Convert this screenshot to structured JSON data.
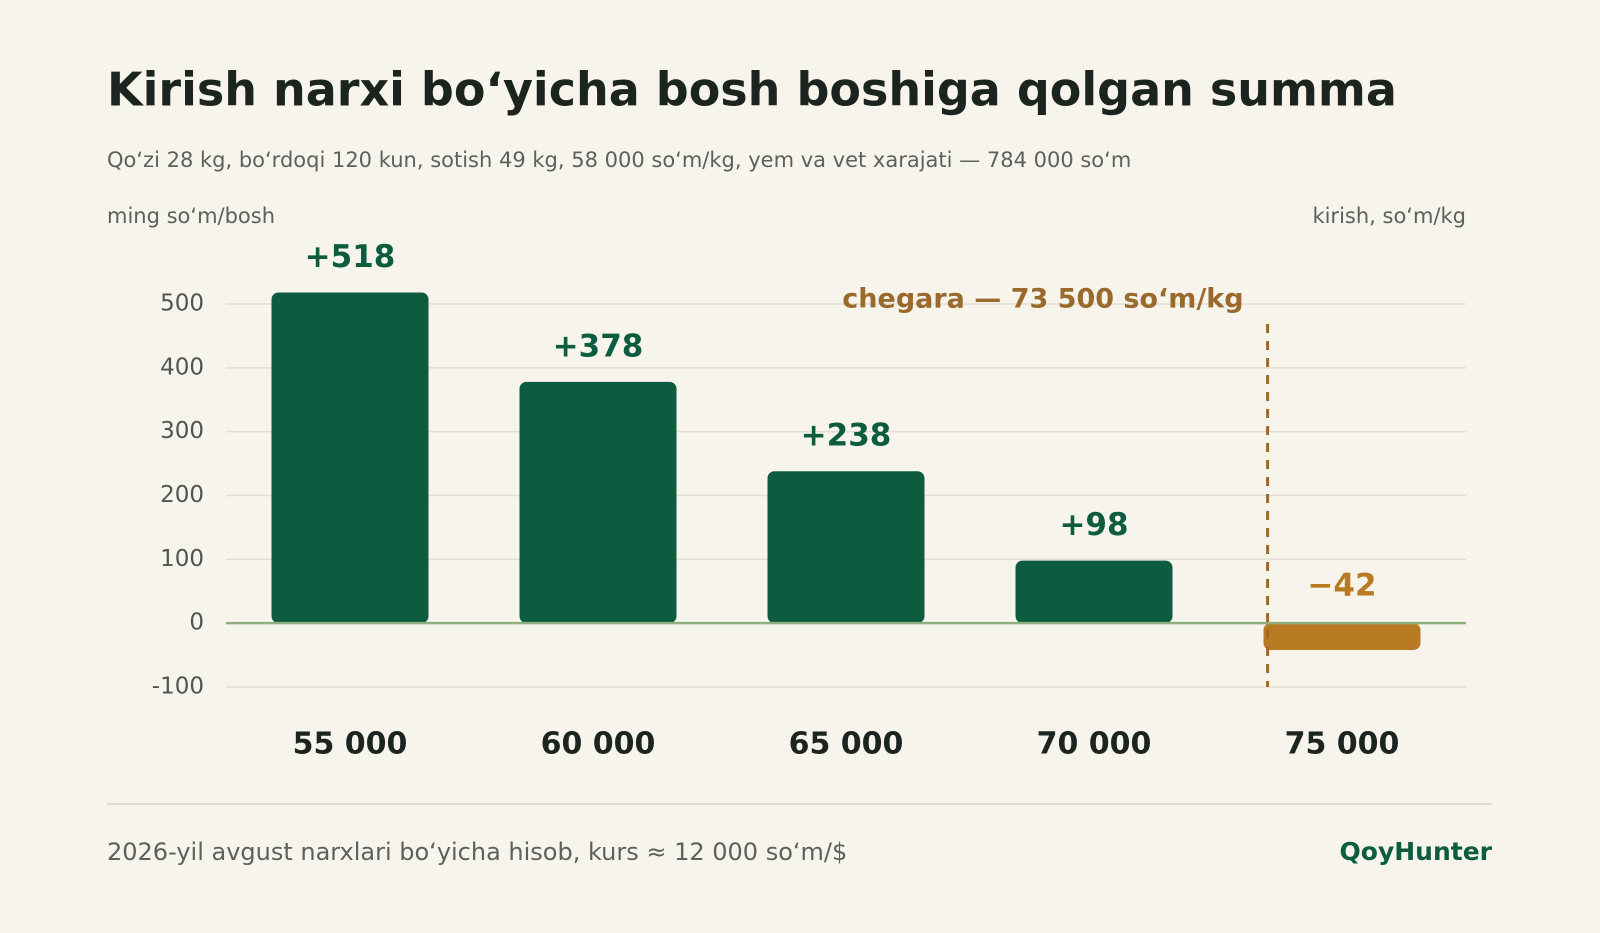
{
  "chart_data": {
    "type": "bar",
    "title": "Kirish narxi bo‘yicha bosh boshiga qolgan summa",
    "subtitle": "Qo‘zi 28 kg, bo‘rdoqi 120 kun, sotish 49 kg, 58 000 so‘m/kg, yem va vet xarajati — 784 000 so‘m",
    "y_label": "ming so‘m/bosh",
    "x_label": "kirish, so‘m/kg",
    "x": [
      55000,
      60000,
      65000,
      70000,
      75000
    ],
    "values": [
      518,
      378,
      238,
      98,
      -42
    ],
    "value_labels": [
      "+518",
      "+378",
      "+238",
      "+98",
      "−42"
    ],
    "colors": [
      "#0d5c40",
      "#0d5c40",
      "#0d5c40",
      "#0d5c40",
      "#b87a22"
    ],
    "xlim": [
      52500,
      77500
    ],
    "xticks": [
      {
        "value": 55000,
        "label": "55 000"
      },
      {
        "value": 60000,
        "label": "60 000"
      },
      {
        "value": 65000,
        "label": "65 000"
      },
      {
        "value": 70000,
        "label": "70 000"
      },
      {
        "value": 75000,
        "label": "75 000"
      }
    ],
    "ylim": [
      -100,
      500
    ],
    "yticks": [
      -100,
      0,
      100,
      200,
      300,
      400,
      500
    ],
    "grid": true,
    "threshold": {
      "value": 73500,
      "label": "chegara — 73 500 so‘m/kg",
      "color": "#9a6a2c"
    },
    "footnote": "2026-yil avgust narxlari bo‘yicha hisob, kurs ≈ 12 000 so‘m/$",
    "brand": "QoyHunter"
  }
}
